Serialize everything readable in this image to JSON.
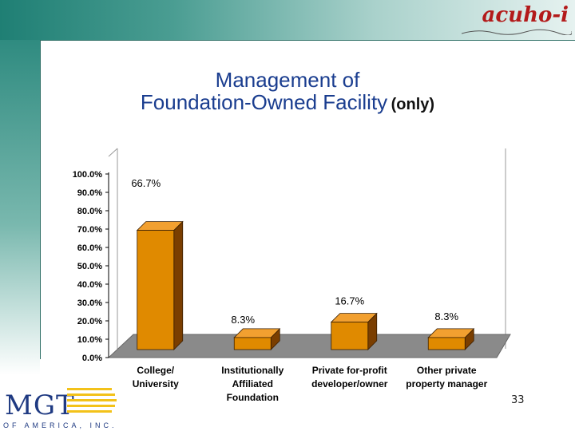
{
  "header": {
    "logo_text": "acuho-i"
  },
  "slide": {
    "title_line1": "Management of",
    "title_line2": "Foundation-Owned Facility",
    "title_suffix": "(only)",
    "page_number": "33"
  },
  "footer": {
    "logo_main": "MGT",
    "logo_sub": "OF AMERICA, INC."
  },
  "colors": {
    "bar_front": "#e08a00",
    "bar_side": "#7a3e00",
    "bar_top": "#f2a030",
    "floor": "#8a8a8a",
    "title": "#1a3d8f"
  },
  "chart_data": {
    "type": "bar",
    "categories": [
      "College/ University",
      "Institutionally Affiliated Foundation",
      "Private for-profit developer/owner",
      "Other private property manager"
    ],
    "category_lines": [
      [
        "College/",
        "University"
      ],
      [
        "Institutionally",
        "Affiliated",
        "Foundation"
      ],
      [
        "Private for-profit",
        "developer/owner"
      ],
      [
        "Other private",
        "property manager"
      ]
    ],
    "values": [
      66.7,
      8.3,
      16.7,
      8.3
    ],
    "data_labels": [
      "66.7%",
      "8.3%",
      "16.7%",
      "8.3%"
    ],
    "y_ticks": [
      "0.0%",
      "10.0%",
      "20.0%",
      "30.0%",
      "40.0%",
      "50.0%",
      "60.0%",
      "70.0%",
      "80.0%",
      "90.0%",
      "100.0%"
    ],
    "ylim": [
      0,
      100
    ],
    "grid": false,
    "legend": "none",
    "style": "3d-bar"
  }
}
